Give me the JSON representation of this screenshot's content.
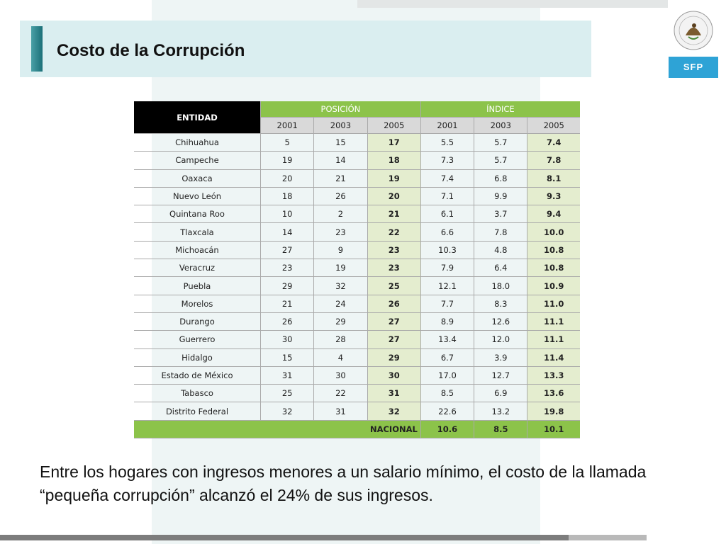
{
  "slide": {
    "title": "Costo de la Corrupción",
    "logo_text": "SFP",
    "footer": "Entre los hogares con ingresos menores a un salario mínimo, el costo de la llamada “pequeña corrupción” alcanzó el 24% de sus ingresos."
  },
  "table": {
    "header_entidad": "ENTIDAD",
    "group_posicion": "POSICIÓN",
    "group_indice": "ÍNDICE",
    "years": [
      "2001",
      "2003",
      "2005",
      "2001",
      "2003",
      "2005"
    ],
    "rows": [
      {
        "entidad": "Chihuahua",
        "values": [
          "5",
          "15",
          "17",
          "5.5",
          "5.7",
          "7.4"
        ]
      },
      {
        "entidad": "Campeche",
        "values": [
          "19",
          "14",
          "18",
          "7.3",
          "5.7",
          "7.8"
        ]
      },
      {
        "entidad": "Oaxaca",
        "values": [
          "20",
          "21",
          "19",
          "7.4",
          "6.8",
          "8.1"
        ]
      },
      {
        "entidad": "Nuevo León",
        "values": [
          "18",
          "26",
          "20",
          "7.1",
          "9.9",
          "9.3"
        ]
      },
      {
        "entidad": "Quintana Roo",
        "values": [
          "10",
          "2",
          "21",
          "6.1",
          "3.7",
          "9.4"
        ]
      },
      {
        "entidad": "Tlaxcala",
        "values": [
          "14",
          "23",
          "22",
          "6.6",
          "7.8",
          "10.0"
        ]
      },
      {
        "entidad": "Michoacán",
        "values": [
          "27",
          "9",
          "23",
          "10.3",
          "4.8",
          "10.8"
        ]
      },
      {
        "entidad": "Veracruz",
        "values": [
          "23",
          "19",
          "23",
          "7.9",
          "6.4",
          "10.8"
        ]
      },
      {
        "entidad": "Puebla",
        "values": [
          "29",
          "32",
          "25",
          "12.1",
          "18.0",
          "10.9"
        ]
      },
      {
        "entidad": "Morelos",
        "values": [
          "21",
          "24",
          "26",
          "7.7",
          "8.3",
          "11.0"
        ]
      },
      {
        "entidad": "Durango",
        "values": [
          "26",
          "29",
          "27",
          "8.9",
          "12.6",
          "11.1"
        ]
      },
      {
        "entidad": "Guerrero",
        "values": [
          "30",
          "28",
          "27",
          "13.4",
          "12.0",
          "11.1"
        ]
      },
      {
        "entidad": "Hidalgo",
        "values": [
          "15",
          "4",
          "29",
          "6.7",
          "3.9",
          "11.4"
        ]
      },
      {
        "entidad": "Estado de México",
        "values": [
          "31",
          "30",
          "30",
          "17.0",
          "12.7",
          "13.3"
        ]
      },
      {
        "entidad": "Tabasco",
        "values": [
          "25",
          "22",
          "31",
          "8.5",
          "6.9",
          "13.6"
        ]
      },
      {
        "entidad": "Distrito Federal",
        "values": [
          "32",
          "31",
          "32",
          "22.6",
          "13.2",
          "19.8"
        ]
      }
    ],
    "nacional": {
      "label": "NACIONAL",
      "values": [
        "10.6",
        "8.5",
        "10.1"
      ]
    }
  },
  "colors": {
    "accent_green": "#8cc34a",
    "highlight": "#e4edcf",
    "title_band": "#daeef0",
    "logo_blue": "#2ea3d6"
  }
}
